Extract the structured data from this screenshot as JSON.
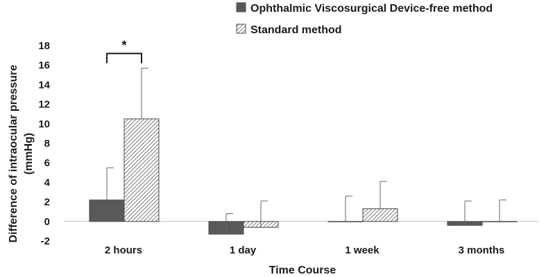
{
  "chart_data": {
    "type": "bar",
    "title": "",
    "xlabel": "Time Course",
    "ylabel": "Difference of intraocular pressure (mmHg)",
    "ylabel_lines": [
      "Difference of intraocular pressure",
      "(mmHg)"
    ],
    "ylim": [
      -2,
      18
    ],
    "yticks": [
      -2,
      0,
      2,
      4,
      6,
      8,
      10,
      12,
      14,
      16,
      18
    ],
    "categories": [
      "2 hours",
      "1 day",
      "1 week",
      "3 months"
    ],
    "series": [
      {
        "name": "Ophthalmic Viscosurgical Device-free method",
        "values": [
          2.2,
          -1.3,
          0,
          -0.4
        ],
        "error_upper": [
          5.5,
          0.8,
          2.6,
          2.1
        ],
        "fill": "solid",
        "color": "#595959"
      },
      {
        "name": "Standard method",
        "values": [
          10.5,
          -0.6,
          1.3,
          0
        ],
        "error_upper": [
          15.7,
          2.1,
          4.1,
          2.2
        ],
        "fill": "hatched",
        "color": "#595959"
      }
    ],
    "annotations": [
      {
        "text": "*",
        "category": "2 hours",
        "between_series": [
          0,
          1
        ],
        "y": 17.2
      }
    ],
    "legend_position": "top-right",
    "grid": false
  }
}
